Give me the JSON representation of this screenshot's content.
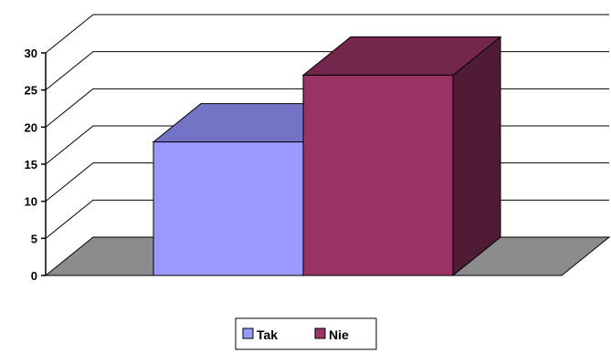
{
  "chart_data": {
    "type": "bar",
    "categories": [
      "Tak",
      "Nie"
    ],
    "values": [
      18,
      27
    ],
    "ylim": [
      0,
      30
    ],
    "yticks": [
      0,
      5,
      10,
      15,
      20,
      25,
      30
    ],
    "ytick_labels": [
      "0",
      "5",
      "10",
      "15",
      "20",
      "25",
      "30"
    ],
    "grid": true,
    "legend_position": "bottom",
    "colors": {
      "Tak": {
        "front": "#9999ff",
        "top": "#7474c6",
        "side": "#5555a8"
      },
      "Nie": {
        "front": "#993366",
        "top": "#74264d",
        "side": "#4f1b35"
      },
      "floor": "#8c8c8c"
    },
    "legend": [
      {
        "label": "Tak",
        "color": "#9999ff"
      },
      {
        "label": "Nie",
        "color": "#993366"
      }
    ]
  }
}
